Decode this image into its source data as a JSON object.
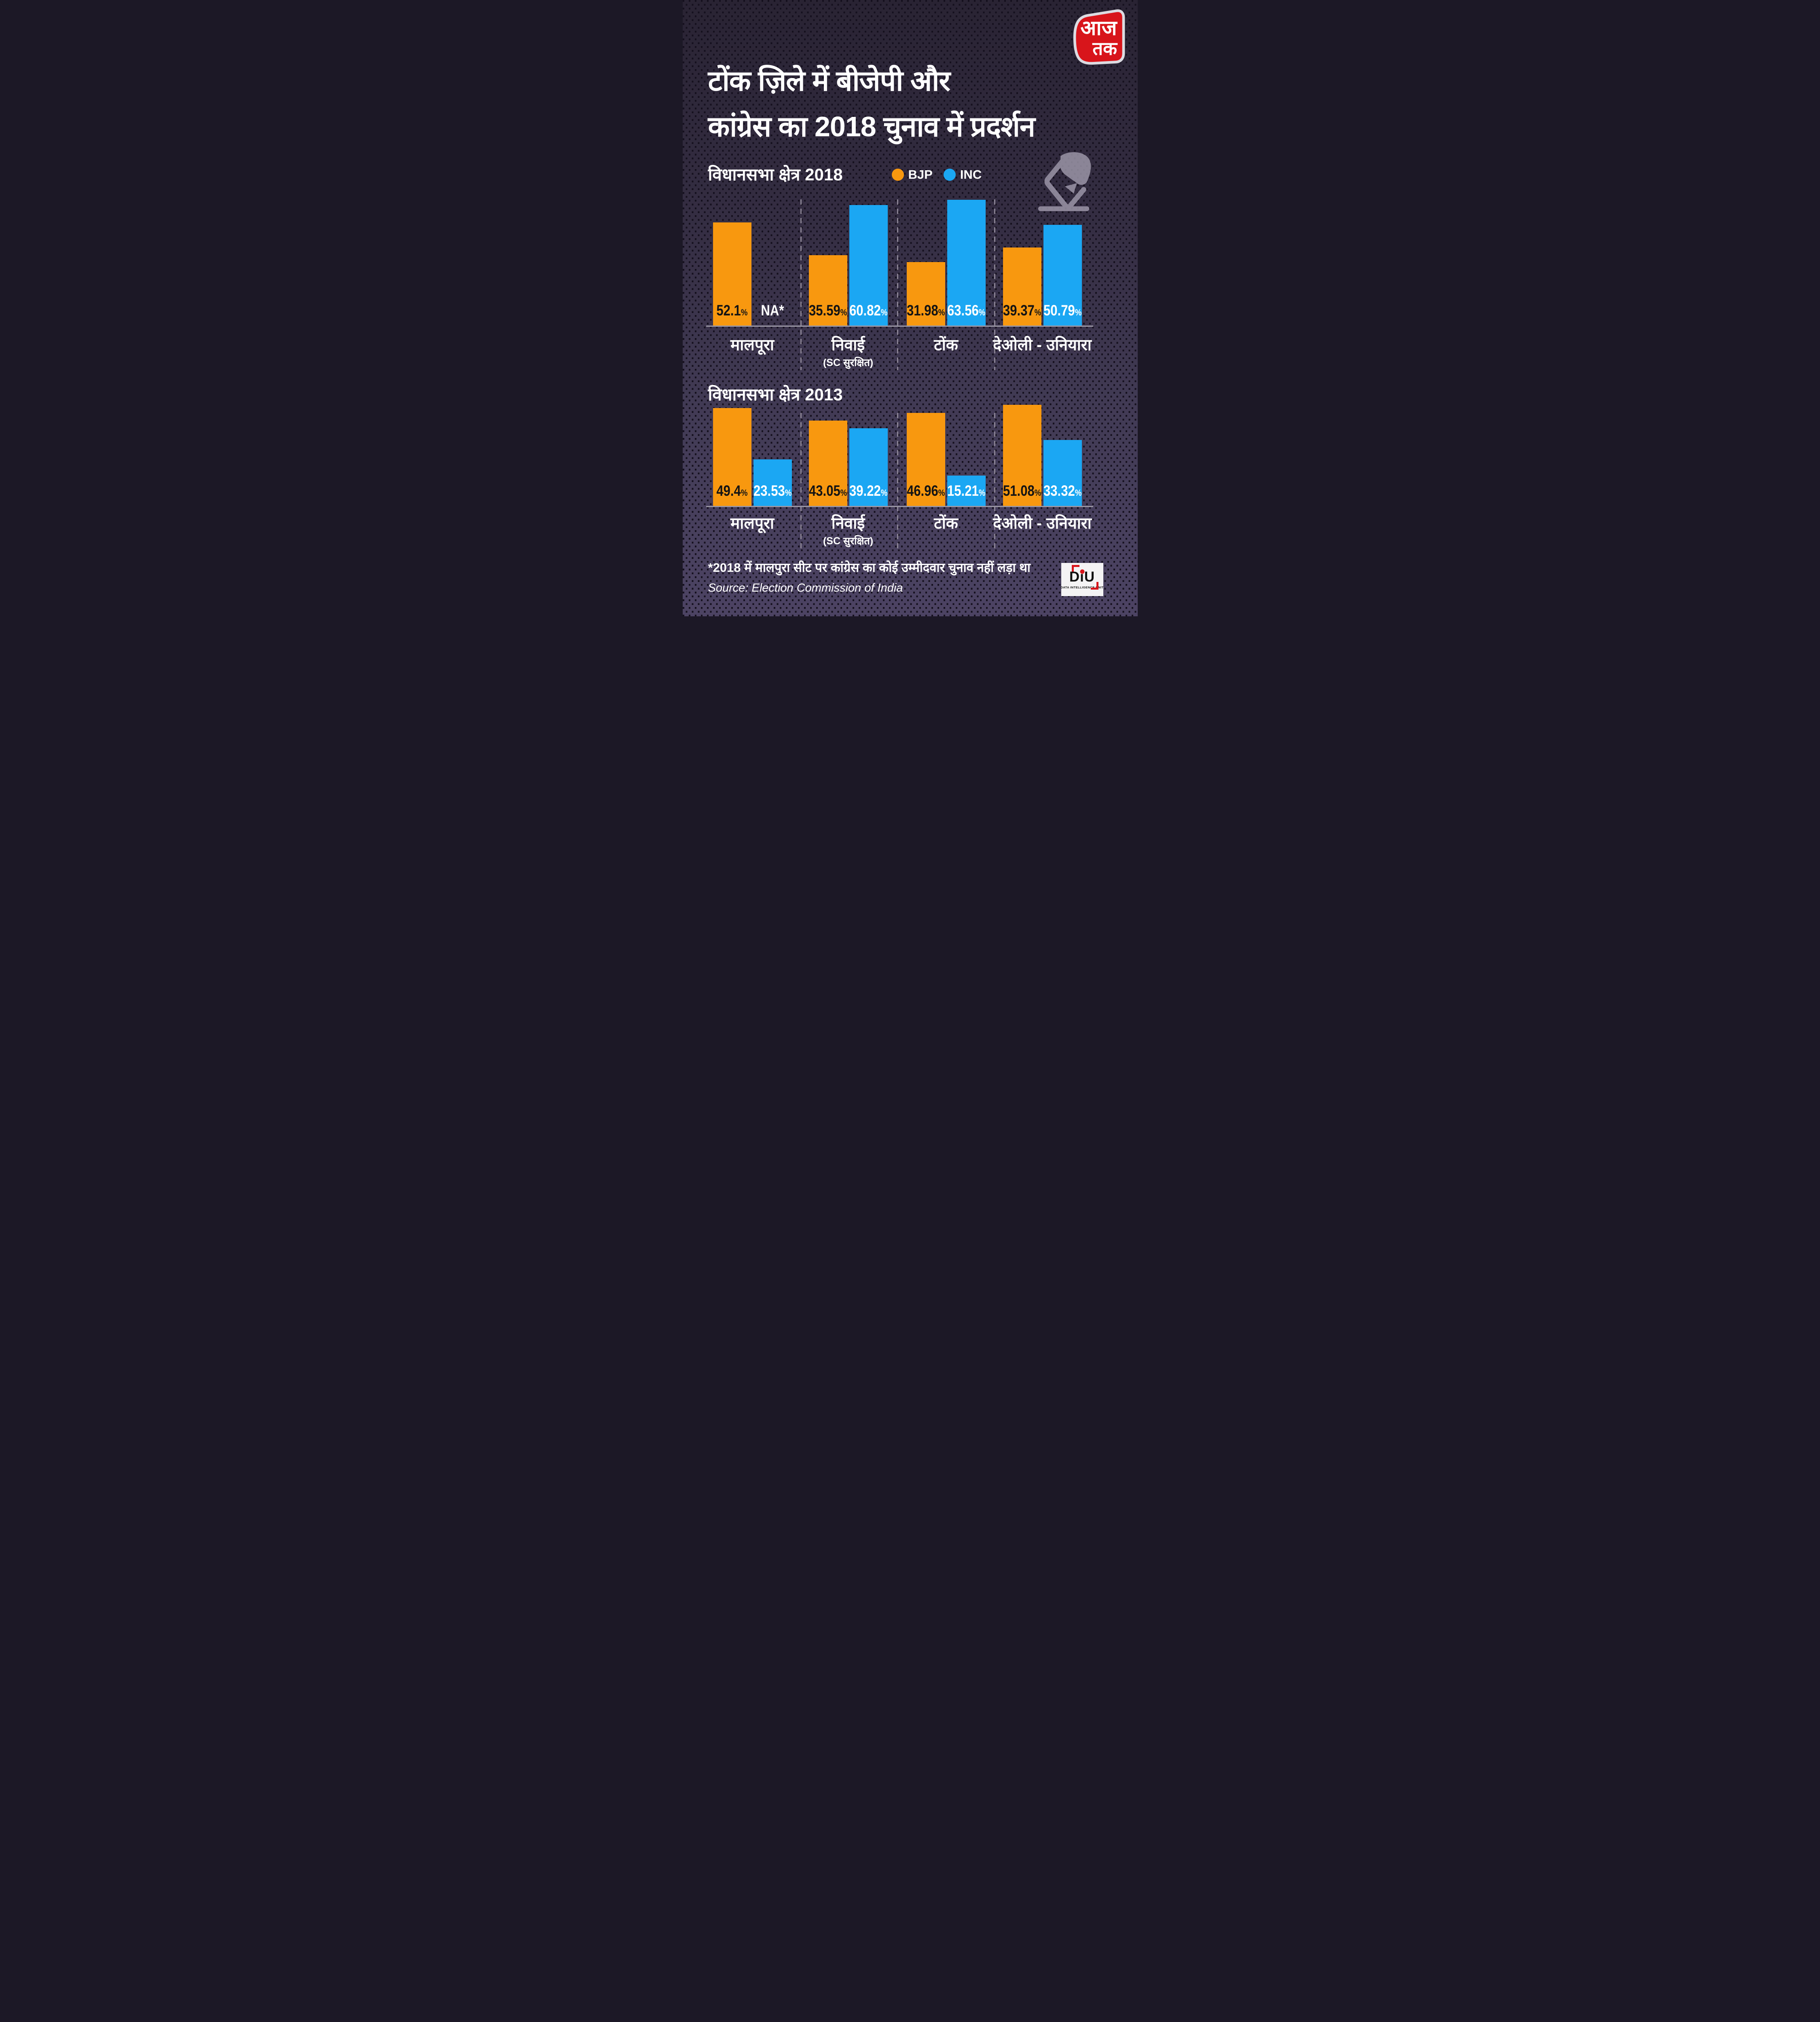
{
  "brand": {
    "channel_logo": {
      "line1": "आज",
      "line2": "तक"
    },
    "diu_logo": {
      "abbr": "DiU",
      "tagline": "DATA INTELLIGENCE UNIT"
    }
  },
  "title": {
    "line1": "टोंक ज़िले में बीजेपी और",
    "line2": "कांग्रेस का 2018 चुनाव में प्रदर्शन"
  },
  "legend": {
    "bjp_label": "BJP",
    "inc_label": "INC"
  },
  "colors": {
    "bjp": "#F8980F",
    "inc": "#1BA7F3",
    "accent_red": "#D8151B",
    "background_top": "#292333",
    "background_bottom": "#4C4363",
    "pattern_square": "#15101E",
    "baseline": "#9A96A4",
    "separator": "#8B8494",
    "text": "#FFFFFF"
  },
  "footnote": "*2018 में मालपुरा सीट पर कांग्रेस का कोई उम्मीदवार चुनाव नहीं लड़ा था",
  "source": "Source: Election Commission of India",
  "chart_data": [
    {
      "id": "c2018",
      "type": "bar",
      "title": "विधानसभा क्षेत्र 2018",
      "unit": "%",
      "ylim": [
        0,
        65
      ],
      "grid": false,
      "legend_position": "top",
      "value_labels_inside": true,
      "categories": [
        "मालपूरा",
        "निवाई",
        "टोंक",
        "देओली - उनियारा"
      ],
      "category_notes": [
        "",
        "(SC सुरक्षित)",
        "",
        ""
      ],
      "na_note": "NA*",
      "series": [
        {
          "name": "BJP",
          "color": "#F8980F",
          "values": [
            52.1,
            35.59,
            31.98,
            39.37
          ],
          "labels": [
            "52.1",
            "35.59",
            "31.98",
            "39.37"
          ]
        },
        {
          "name": "INC",
          "color": "#1BA7F3",
          "values": [
            null,
            60.82,
            63.56,
            50.79
          ],
          "labels": [
            "NA*",
            "60.82",
            "63.56",
            "50.79"
          ]
        }
      ]
    },
    {
      "id": "c2013",
      "type": "bar",
      "title": "विधानसभा क्षेत्र 2013",
      "unit": "%",
      "ylim": [
        0,
        55
      ],
      "grid": false,
      "value_labels_inside": true,
      "categories": [
        "मालपूरा",
        "निवाई",
        "टोंक",
        "देओली - उनियारा"
      ],
      "category_notes": [
        "",
        "(SC सुरक्षित)",
        "",
        ""
      ],
      "series": [
        {
          "name": "BJP",
          "color": "#F8980F",
          "values": [
            49.4,
            43.05,
            46.96,
            51.08
          ],
          "labels": [
            "49.4",
            "43.05",
            "46.96",
            "51.08"
          ]
        },
        {
          "name": "INC",
          "color": "#1BA7F3",
          "values": [
            23.53,
            39.22,
            15.21,
            33.32
          ],
          "labels": [
            "23.53",
            "39.22",
            "15.21",
            "33.32"
          ]
        }
      ]
    }
  ]
}
